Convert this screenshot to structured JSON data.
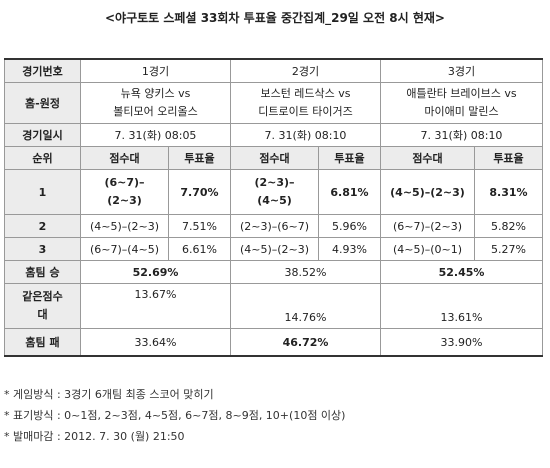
{
  "title": "<야구토토 스페셜 33회차 투표율 중간집계_29일 오전 8시 현재>",
  "row_labels": {
    "game_no": "경기번호",
    "home_away": "홈-원정",
    "game_date": "경기일시",
    "rank": "순위",
    "home_win": "홈팀 승",
    "same_score_1": "같은점수",
    "same_score_2": "대",
    "home_loss": "홈팀 패"
  },
  "col_labels": {
    "score": "점수대",
    "rate": "투표율"
  },
  "games": [
    {
      "no": "1경기",
      "teams_1": "뉴욕 양키스 vs",
      "teams_2": "볼티모어 오리올스",
      "date": "7. 31(화) 08:05",
      "top3": [
        {
          "score_1": "(6~7)–",
          "score_2": "(2~3)",
          "rate": "7.70%"
        },
        {
          "score": "(4~5)–(2~3)",
          "rate": "7.51%"
        },
        {
          "score": "(6~7)–(4~5)",
          "rate": "6.61%"
        }
      ],
      "home_win": "52.69%",
      "same": "13.67%",
      "home_loss": "33.64%"
    },
    {
      "no": "2경기",
      "teams_1": "보스턴 레드삭스 vs",
      "teams_2": "디트로이트 타이거즈",
      "date": "7. 31(화) 08:10",
      "top3": [
        {
          "score_1": "(2~3)–",
          "score_2": "(4~5)",
          "rate": "6.81%"
        },
        {
          "score": "(2~3)–(6~7)",
          "rate": "5.96%"
        },
        {
          "score": "(4~5)–(2~3)",
          "rate": "4.93%"
        }
      ],
      "home_win": "38.52%",
      "same": "14.76%",
      "home_loss": "46.72%"
    },
    {
      "no": "3경기",
      "teams_1": "애틀란타 브레이브스 vs",
      "teams_2": "마이애미 말린스",
      "date": "7. 31(화) 08:10",
      "top3": [
        {
          "score": "(4~5)–(2~3)",
          "rate": "8.31%"
        },
        {
          "score": "(6~7)–(2~3)",
          "rate": "5.82%"
        },
        {
          "score": "(4~5)–(0~1)",
          "rate": "5.27%"
        }
      ],
      "home_win": "52.45%",
      "same": "13.61%",
      "home_loss": "33.90%"
    }
  ],
  "notes": [
    "* 게임방식 : 3경기 6개팀 최종 스코어 맞히기",
    "* 표기방식 : 0~1점, 2~3점, 4~5점, 6~7점, 8~9점, 10+(10점 이상)",
    "* 발매마감 : 2012. 7. 30 (월) 21:50"
  ]
}
